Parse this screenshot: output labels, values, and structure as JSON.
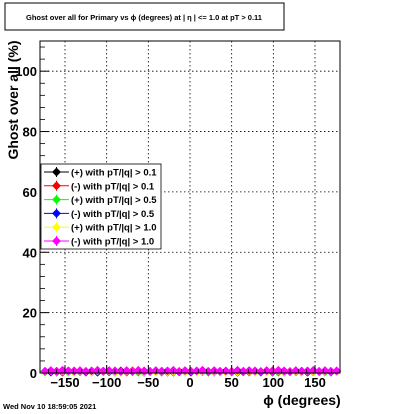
{
  "chart_data": {
    "type": "scatter",
    "title": "Ghost over all for Primary vs ϕ (degrees) at | η | <= 1.0 at pT > 0.11",
    "xlabel": "ϕ (degrees)",
    "ylabel": "Ghost over all (%)",
    "xlim": [
      -180,
      180
    ],
    "ylim": [
      0,
      110
    ],
    "x_ticks": [
      -150,
      -100,
      -50,
      0,
      50,
      100,
      150
    ],
    "y_ticks": [
      0,
      20,
      40,
      60,
      80,
      100
    ],
    "x_tick_labels": [
      "−150",
      "−100",
      "−50",
      "0",
      "50",
      "100",
      "150"
    ],
    "y_tick_labels": [
      "0",
      "20",
      "40",
      "60",
      "80",
      "100"
    ],
    "grid": true,
    "legend_position": "left-middle",
    "marker_x": [
      -174,
      -167,
      -160,
      -153,
      -146,
      -139,
      -132,
      -125,
      -118,
      -111,
      -104,
      -97,
      -90,
      -83,
      -76,
      -69,
      -62,
      -55,
      -48,
      -41,
      -34,
      -27,
      -20,
      -13,
      -6,
      1,
      8,
      15,
      22,
      29,
      36,
      43,
      50,
      57,
      64,
      71,
      78,
      85,
      92,
      99,
      106,
      113,
      120,
      127,
      134,
      141,
      148,
      155,
      162,
      169,
      176
    ],
    "series": [
      {
        "name": "(+) with pT/|q| > 0.1",
        "color": "#000000",
        "values": [
          0.4,
          0.6,
          0.3,
          0.5,
          0.7,
          0.4,
          0.6,
          0.3,
          0.5,
          0.4,
          0.6,
          0.5,
          0.3,
          0.7,
          0.4,
          0.5,
          0.6,
          0.3,
          0.4,
          0.5,
          0.6,
          0.4,
          0.3,
          0.5,
          0.6,
          0.4,
          0.5,
          0.7,
          0.3,
          0.5,
          0.4,
          0.6,
          0.5,
          0.3,
          0.4,
          0.6,
          0.5,
          0.4,
          0.7,
          0.3,
          0.5,
          0.6,
          0.4,
          0.5,
          0.3,
          0.6,
          0.4,
          0.5,
          0.7,
          0.4,
          0.5
        ]
      },
      {
        "name": "(-) with pT/|q| > 0.1",
        "color": "#ff0000",
        "values": [
          0.5,
          0.4,
          0.6,
          0.3,
          0.5,
          0.7,
          0.4,
          0.5,
          0.6,
          0.3,
          0.5,
          0.4,
          0.6,
          0.5,
          0.3,
          0.7,
          0.4,
          0.5,
          0.6,
          0.4,
          0.3,
          0.5,
          0.6,
          0.4,
          0.5,
          0.3,
          0.6,
          0.4,
          0.5,
          0.7,
          0.4,
          0.3,
          0.6,
          0.5,
          0.4,
          0.3,
          0.6,
          0.5,
          0.4,
          0.7,
          0.3,
          0.5,
          0.4,
          0.6,
          0.5,
          0.3,
          0.6,
          0.4,
          0.5,
          0.3,
          0.6
        ]
      },
      {
        "name": "(+) with pT/|q| > 0.5",
        "color": "#00ff00",
        "values": [
          0.3,
          0.5,
          0.4,
          0.6,
          0.3,
          0.5,
          0.4,
          0.6,
          0.3,
          0.5,
          0.4,
          0.6,
          0.3,
          0.5,
          0.4,
          0.6,
          0.3,
          0.5,
          0.4,
          0.6,
          0.3,
          0.5,
          0.4,
          0.6,
          0.3,
          0.5,
          0.4,
          0.6,
          0.3,
          0.5,
          0.4,
          0.6,
          0.3,
          0.5,
          0.4,
          0.6,
          0.3,
          0.5,
          0.4,
          0.6,
          0.3,
          0.5,
          0.4,
          0.6,
          0.3,
          0.5,
          0.4,
          0.6,
          0.3,
          0.5,
          0.4
        ]
      },
      {
        "name": "(-) with pT/|q| > 0.5",
        "color": "#0000ff",
        "values": [
          0.6,
          0.3,
          0.5,
          0.4,
          0.6,
          0.3,
          0.5,
          0.4,
          0.6,
          0.3,
          0.5,
          0.4,
          0.6,
          0.3,
          0.5,
          0.4,
          0.6,
          0.3,
          0.5,
          0.4,
          0.6,
          0.3,
          0.5,
          0.4,
          0.6,
          0.3,
          0.5,
          0.4,
          0.6,
          0.3,
          0.5,
          0.4,
          0.6,
          0.3,
          0.5,
          0.4,
          0.6,
          0.3,
          0.5,
          0.4,
          0.6,
          0.3,
          0.5,
          0.4,
          0.6,
          0.3,
          0.5,
          0.4,
          0.6,
          0.3,
          0.5
        ]
      },
      {
        "name": "(+) with pT/|q| > 1.0",
        "color": "#ffff00",
        "values": [
          0.5,
          0.7,
          0.4,
          0.6,
          0.5,
          0.3,
          0.6,
          0.5,
          0.4,
          0.7,
          0.5,
          0.6,
          0.4,
          0.3,
          0.6,
          0.5,
          0.7,
          0.4,
          0.5,
          0.3,
          0.6,
          0.4,
          0.5,
          0.7,
          0.4,
          0.6,
          0.3,
          0.5,
          0.6,
          0.4,
          0.5,
          0.3,
          0.7,
          0.4,
          0.6,
          0.5,
          0.4,
          0.6,
          0.3,
          0.5,
          0.7,
          0.4,
          0.6,
          0.5,
          0.3,
          0.6,
          0.5,
          0.4,
          0.6,
          0.5,
          0.4
        ]
      },
      {
        "name": "(-) with pT/|q| > 1.0",
        "color": "#ff00ff",
        "values": [
          0.6,
          0.8,
          0.5,
          0.9,
          0.7,
          0.6,
          0.8,
          0.5,
          0.7,
          0.9,
          0.6,
          0.8,
          0.7,
          0.5,
          0.8,
          0.6,
          0.9,
          0.7,
          0.5,
          0.8,
          0.6,
          0.7,
          0.9,
          0.5,
          0.8,
          0.6,
          0.7,
          0.9,
          0.5,
          0.8,
          0.6,
          0.7,
          0.5,
          0.9,
          0.6,
          0.8,
          0.7,
          0.5,
          0.8,
          0.6,
          0.9,
          0.7,
          0.5,
          0.8,
          0.6,
          0.7,
          0.9,
          0.5,
          0.8,
          0.6,
          0.7
        ]
      }
    ]
  },
  "footer": {
    "timestamp": "Wed Nov 10 18:59:05 2021"
  }
}
